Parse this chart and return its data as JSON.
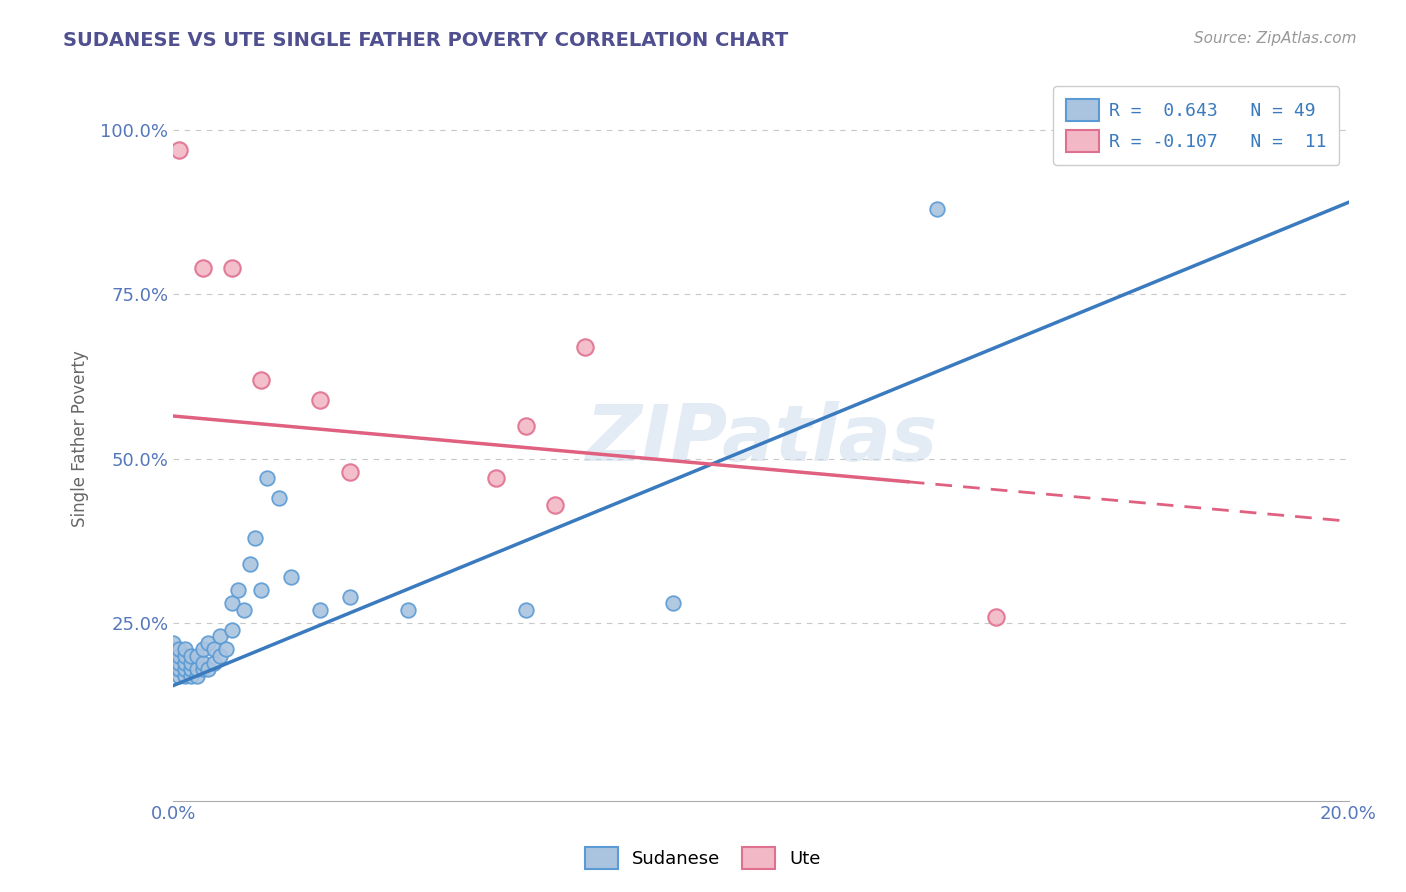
{
  "title": "SUDANESE VS UTE SINGLE FATHER POVERTY CORRELATION CHART",
  "source": "Source: ZipAtlas.com",
  "ylabel": "Single Father Poverty",
  "xlim": [
    0.0,
    0.2
  ],
  "ylim": [
    -0.02,
    1.08
  ],
  "watermark": "ZIPatlas",
  "sudanese_color": "#aac4df",
  "ute_color": "#f2b8c6",
  "sudanese_edge_color": "#5b9bd5",
  "ute_edge_color": "#e07090",
  "sudanese_line_color": "#3a7abf",
  "ute_line_color": "#e06080",
  "grid_color": "#c8c8c8",
  "title_color": "#505090",
  "label_color": "#5577bb",
  "legend_text_color": "#3a7abf",
  "sudanese_points_x": [
    0.0,
    0.0,
    0.0,
    0.0,
    0.0,
    0.0,
    0.001,
    0.001,
    0.001,
    0.001,
    0.001,
    0.002,
    0.002,
    0.002,
    0.002,
    0.002,
    0.003,
    0.003,
    0.003,
    0.003,
    0.004,
    0.004,
    0.004,
    0.005,
    0.005,
    0.005,
    0.006,
    0.006,
    0.007,
    0.007,
    0.008,
    0.008,
    0.009,
    0.01,
    0.01,
    0.011,
    0.012,
    0.013,
    0.014,
    0.015,
    0.016,
    0.018,
    0.02,
    0.025,
    0.03,
    0.04,
    0.06,
    0.085,
    0.13
  ],
  "sudanese_points_y": [
    0.18,
    0.19,
    0.2,
    0.2,
    0.21,
    0.22,
    0.17,
    0.18,
    0.19,
    0.2,
    0.21,
    0.17,
    0.18,
    0.19,
    0.2,
    0.21,
    0.17,
    0.18,
    0.19,
    0.2,
    0.17,
    0.18,
    0.2,
    0.18,
    0.19,
    0.21,
    0.18,
    0.22,
    0.19,
    0.21,
    0.2,
    0.23,
    0.21,
    0.24,
    0.28,
    0.3,
    0.27,
    0.34,
    0.38,
    0.3,
    0.47,
    0.44,
    0.32,
    0.27,
    0.29,
    0.27,
    0.27,
    0.28,
    0.88
  ],
  "ute_points_x": [
    0.001,
    0.005,
    0.01,
    0.015,
    0.025,
    0.03,
    0.055,
    0.06,
    0.065,
    0.07,
    0.14
  ],
  "ute_points_y": [
    0.97,
    0.79,
    0.79,
    0.62,
    0.59,
    0.48,
    0.47,
    0.55,
    0.43,
    0.67,
    0.26
  ],
  "sudanese_line_x": [
    0.0,
    0.2
  ],
  "sudanese_line_y": [
    0.155,
    0.89
  ],
  "ute_line_x0": 0.0,
  "ute_line_x_break": 0.125,
  "ute_line_x1": 0.2,
  "ute_line_y0": 0.565,
  "ute_line_y1": 0.405
}
